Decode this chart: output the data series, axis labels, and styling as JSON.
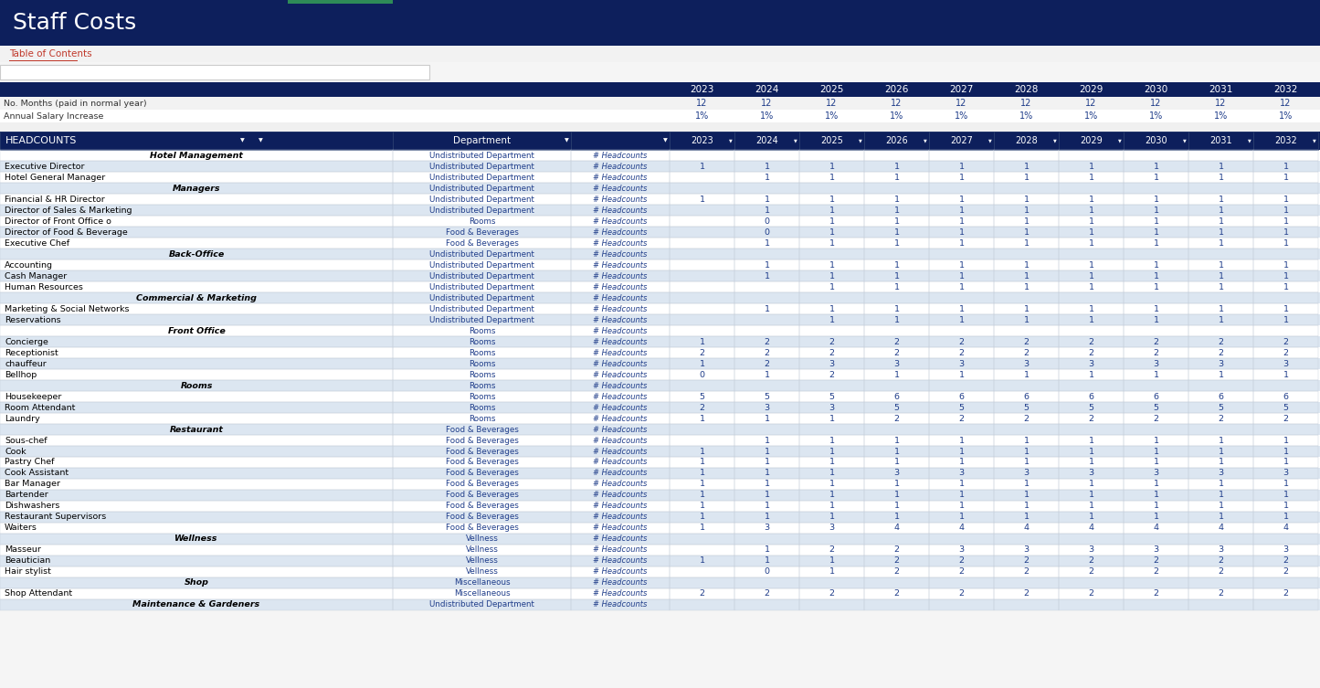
{
  "title": "Staff Costs",
  "title_bg": "#0d1f5c",
  "title_color": "white",
  "link_text": "Table of Contents",
  "link_color": "#c0392b",
  "years": [
    "2023",
    "2024",
    "2025",
    "2026",
    "2027",
    "2028",
    "2029",
    "2030",
    "2031",
    "2032"
  ],
  "no_months": [
    "12",
    "12",
    "12",
    "12",
    "12",
    "12",
    "12",
    "12",
    "12",
    "12"
  ],
  "salary_increase": [
    "1%",
    "1%",
    "1%",
    "1%",
    "1%",
    "1%",
    "1%",
    "1%",
    "1%",
    "1%"
  ],
  "header_bg": "#0d1f5c",
  "header_color": "white",
  "row_alt1": "#ffffff",
  "row_alt2": "#dce6f1",
  "dept_color": "#1f3d8a",
  "number_color": "#1f3d8a",
  "section_color": "#000000",
  "rows": [
    {
      "name": "Hotel Management",
      "dept": "Undistributed Department",
      "unit": "# Headcounts",
      "values": [
        "",
        "",
        "",
        "",
        "",
        "",
        "",
        "",
        "",
        ""
      ],
      "style": "section"
    },
    {
      "name": "Executive Director",
      "dept": "Undistributed Department",
      "unit": "# Headcounts",
      "values": [
        "1",
        "1",
        "1",
        "1",
        "1",
        "1",
        "1",
        "1",
        "1",
        "1"
      ],
      "style": "normal"
    },
    {
      "name": "Hotel General Manager",
      "dept": "Undistributed Department",
      "unit": "# Headcounts",
      "values": [
        "",
        "1",
        "1",
        "1",
        "1",
        "1",
        "1",
        "1",
        "1",
        "1"
      ],
      "style": "normal"
    },
    {
      "name": "Managers",
      "dept": "Undistributed Department",
      "unit": "# Headcounts",
      "values": [
        "",
        "",
        "",
        "",
        "",
        "",
        "",
        "",
        "",
        ""
      ],
      "style": "section"
    },
    {
      "name": "Financial & HR Director",
      "dept": "Undistributed Department",
      "unit": "# Headcounts",
      "values": [
        "1",
        "1",
        "1",
        "1",
        "1",
        "1",
        "1",
        "1",
        "1",
        "1"
      ],
      "style": "normal"
    },
    {
      "name": "Director of Sales & Marketing",
      "dept": "Undistributed Department",
      "unit": "# Headcounts",
      "values": [
        "",
        "1",
        "1",
        "1",
        "1",
        "1",
        "1",
        "1",
        "1",
        "1"
      ],
      "style": "normal"
    },
    {
      "name": "Director of Front Office o",
      "dept": "Rooms",
      "unit": "# Headcounts",
      "values": [
        "",
        "0",
        "1",
        "1",
        "1",
        "1",
        "1",
        "1",
        "1",
        "1"
      ],
      "style": "normal"
    },
    {
      "name": "Director of Food & Beverage",
      "dept": "Food & Beverages",
      "unit": "# Headcounts",
      "values": [
        "",
        "0",
        "1",
        "1",
        "1",
        "1",
        "1",
        "1",
        "1",
        "1"
      ],
      "style": "normal"
    },
    {
      "name": "Executive Chef",
      "dept": "Food & Beverages",
      "unit": "# Headcounts",
      "values": [
        "",
        "1",
        "1",
        "1",
        "1",
        "1",
        "1",
        "1",
        "1",
        "1"
      ],
      "style": "normal"
    },
    {
      "name": "Back-Office",
      "dept": "Undistributed Department",
      "unit": "# Headcounts",
      "values": [
        "",
        "",
        "",
        "",
        "",
        "",
        "",
        "",
        "",
        ""
      ],
      "style": "section"
    },
    {
      "name": "Accounting",
      "dept": "Undistributed Department",
      "unit": "# Headcounts",
      "values": [
        "",
        "1",
        "1",
        "1",
        "1",
        "1",
        "1",
        "1",
        "1",
        "1"
      ],
      "style": "normal"
    },
    {
      "name": "Cash Manager",
      "dept": "Undistributed Department",
      "unit": "# Headcounts",
      "values": [
        "",
        "1",
        "1",
        "1",
        "1",
        "1",
        "1",
        "1",
        "1",
        "1"
      ],
      "style": "normal"
    },
    {
      "name": "Human Resources",
      "dept": "Undistributed Department",
      "unit": "# Headcounts",
      "values": [
        "",
        "",
        "1",
        "1",
        "1",
        "1",
        "1",
        "1",
        "1",
        "1"
      ],
      "style": "normal"
    },
    {
      "name": "Commercial & Marketing",
      "dept": "Undistributed Department",
      "unit": "# Headcounts",
      "values": [
        "",
        "",
        "",
        "",
        "",
        "",
        "",
        "",
        "",
        ""
      ],
      "style": "section"
    },
    {
      "name": "Marketing & Social Networks",
      "dept": "Undistributed Department",
      "unit": "# Headcounts",
      "values": [
        "",
        "1",
        "1",
        "1",
        "1",
        "1",
        "1",
        "1",
        "1",
        "1"
      ],
      "style": "normal"
    },
    {
      "name": "Reservations",
      "dept": "Undistributed Department",
      "unit": "# Headcounts",
      "values": [
        "",
        "",
        "1",
        "1",
        "1",
        "1",
        "1",
        "1",
        "1",
        "1"
      ],
      "style": "normal"
    },
    {
      "name": "Front Office",
      "dept": "Rooms",
      "unit": "# Headcounts",
      "values": [
        "",
        "",
        "",
        "",
        "",
        "",
        "",
        "",
        "",
        ""
      ],
      "style": "section"
    },
    {
      "name": "Concierge",
      "dept": "Rooms",
      "unit": "# Headcounts",
      "values": [
        "1",
        "2",
        "2",
        "2",
        "2",
        "2",
        "2",
        "2",
        "2",
        "2"
      ],
      "style": "normal"
    },
    {
      "name": "Receptionist",
      "dept": "Rooms",
      "unit": "# Headcounts",
      "values": [
        "2",
        "2",
        "2",
        "2",
        "2",
        "2",
        "2",
        "2",
        "2",
        "2"
      ],
      "style": "normal"
    },
    {
      "name": "chauffeur",
      "dept": "Rooms",
      "unit": "# Headcounts",
      "values": [
        "1",
        "2",
        "3",
        "3",
        "3",
        "3",
        "3",
        "3",
        "3",
        "3"
      ],
      "style": "normal"
    },
    {
      "name": "Bellhop",
      "dept": "Rooms",
      "unit": "# Headcounts",
      "values": [
        "0",
        "1",
        "2",
        "1",
        "1",
        "1",
        "1",
        "1",
        "1",
        "1"
      ],
      "style": "normal"
    },
    {
      "name": "Rooms",
      "dept": "Rooms",
      "unit": "# Headcounts",
      "values": [
        "",
        "",
        "",
        "",
        "",
        "",
        "",
        "",
        "",
        ""
      ],
      "style": "section"
    },
    {
      "name": "Housekeeper",
      "dept": "Rooms",
      "unit": "# Headcounts",
      "values": [
        "5",
        "5",
        "5",
        "6",
        "6",
        "6",
        "6",
        "6",
        "6",
        "6"
      ],
      "style": "normal"
    },
    {
      "name": "Room Attendant",
      "dept": "Rooms",
      "unit": "# Headcounts",
      "values": [
        "2",
        "3",
        "3",
        "5",
        "5",
        "5",
        "5",
        "5",
        "5",
        "5"
      ],
      "style": "normal"
    },
    {
      "name": "Laundry",
      "dept": "Rooms",
      "unit": "# Headcounts",
      "values": [
        "1",
        "1",
        "1",
        "2",
        "2",
        "2",
        "2",
        "2",
        "2",
        "2"
      ],
      "style": "normal"
    },
    {
      "name": "Restaurant",
      "dept": "Food & Beverages",
      "unit": "# Headcounts",
      "values": [
        "",
        "",
        "",
        "",
        "",
        "",
        "",
        "",
        "",
        ""
      ],
      "style": "section"
    },
    {
      "name": "Sous-chef",
      "dept": "Food & Beverages",
      "unit": "# Headcounts",
      "values": [
        "",
        "1",
        "1",
        "1",
        "1",
        "1",
        "1",
        "1",
        "1",
        "1"
      ],
      "style": "normal"
    },
    {
      "name": "Cook",
      "dept": "Food & Beverages",
      "unit": "# Headcounts",
      "values": [
        "1",
        "1",
        "1",
        "1",
        "1",
        "1",
        "1",
        "1",
        "1",
        "1"
      ],
      "style": "normal"
    },
    {
      "name": "Pastry Chef",
      "dept": "Food & Beverages",
      "unit": "# Headcounts",
      "values": [
        "1",
        "1",
        "1",
        "1",
        "1",
        "1",
        "1",
        "1",
        "1",
        "1"
      ],
      "style": "normal"
    },
    {
      "name": "Cook Assistant",
      "dept": "Food & Beverages",
      "unit": "# Headcounts",
      "values": [
        "1",
        "1",
        "1",
        "3",
        "3",
        "3",
        "3",
        "3",
        "3",
        "3"
      ],
      "style": "normal"
    },
    {
      "name": "Bar Manager",
      "dept": "Food & Beverages",
      "unit": "# Headcounts",
      "values": [
        "1",
        "1",
        "1",
        "1",
        "1",
        "1",
        "1",
        "1",
        "1",
        "1"
      ],
      "style": "normal"
    },
    {
      "name": "Bartender",
      "dept": "Food & Beverages",
      "unit": "# Headcounts",
      "values": [
        "1",
        "1",
        "1",
        "1",
        "1",
        "1",
        "1",
        "1",
        "1",
        "1"
      ],
      "style": "normal"
    },
    {
      "name": "Dishwashers",
      "dept": "Food & Beverages",
      "unit": "# Headcounts",
      "values": [
        "1",
        "1",
        "1",
        "1",
        "1",
        "1",
        "1",
        "1",
        "1",
        "1"
      ],
      "style": "normal"
    },
    {
      "name": "Restaurant Supervisors",
      "dept": "Food & Beverages",
      "unit": "# Headcounts",
      "values": [
        "1",
        "1",
        "1",
        "1",
        "1",
        "1",
        "1",
        "1",
        "1",
        "1"
      ],
      "style": "normal"
    },
    {
      "name": "Waiters",
      "dept": "Food & Beverages",
      "unit": "# Headcounts",
      "values": [
        "1",
        "3",
        "3",
        "4",
        "4",
        "4",
        "4",
        "4",
        "4",
        "4"
      ],
      "style": "normal"
    },
    {
      "name": "Wellness",
      "dept": "Vellness",
      "unit": "# Headcounts",
      "values": [
        "",
        "",
        "",
        "",
        "",
        "",
        "",
        "",
        "",
        ""
      ],
      "style": "section"
    },
    {
      "name": "Masseur",
      "dept": "Vellness",
      "unit": "# Headcounts",
      "values": [
        "",
        "1",
        "2",
        "2",
        "3",
        "3",
        "3",
        "3",
        "3",
        "3"
      ],
      "style": "normal"
    },
    {
      "name": "Beautician",
      "dept": "Vellness",
      "unit": "# Headcounts",
      "values": [
        "1",
        "1",
        "1",
        "2",
        "2",
        "2",
        "2",
        "2",
        "2",
        "2"
      ],
      "style": "normal"
    },
    {
      "name": "Hair stylist",
      "dept": "Vellness",
      "unit": "# Headcounts",
      "values": [
        "",
        "0",
        "1",
        "2",
        "2",
        "2",
        "2",
        "2",
        "2",
        "2"
      ],
      "style": "normal"
    },
    {
      "name": "Shop",
      "dept": "Miscellaneous",
      "unit": "# Headcounts",
      "values": [
        "",
        "",
        "",
        "",
        "",
        "",
        "",
        "",
        "",
        ""
      ],
      "style": "section"
    },
    {
      "name": "Shop Attendant",
      "dept": "Miscellaneous",
      "unit": "# Headcounts",
      "values": [
        "2",
        "2",
        "2",
        "2",
        "2",
        "2",
        "2",
        "2",
        "2",
        "2"
      ],
      "style": "normal"
    },
    {
      "name": "Maintenance & Gardeners",
      "dept": "Undistributed Department",
      "unit": "# Headcounts",
      "values": [
        "",
        "",
        "",
        "",
        "",
        "",
        "",
        "",
        "",
        ""
      ],
      "style": "section"
    }
  ]
}
